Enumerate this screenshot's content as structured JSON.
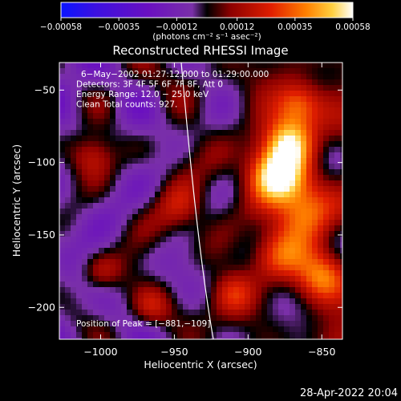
{
  "chart_data": {
    "type": "heatmap",
    "title": "Reconstructed RHESSI Image",
    "xlabel": "Heliocentric X (arcsec)",
    "ylabel": "Heliocentric Y (arcsec)",
    "xlim": [
      -1028,
      -836
    ],
    "ylim": [
      -222,
      -31
    ],
    "x_ticks": [
      {
        "value": -1000,
        "label": "−1000"
      },
      {
        "value": -950,
        "label": "−950"
      },
      {
        "value": -900,
        "label": "−900"
      },
      {
        "value": -850,
        "label": "−850"
      }
    ],
    "y_ticks": [
      {
        "value": -50,
        "label": "−50"
      },
      {
        "value": -100,
        "label": "−100"
      },
      {
        "value": -150,
        "label": "−150"
      },
      {
        "value": -200,
        "label": "−200"
      }
    ],
    "annotations": [
      "6−May−2002 01:27:12.000 to 01:29:00.000",
      "Detectors: 3F 4F 5F 6F 7F 8F, Att 0",
      "Energy Range: 12.0 − 25.0 keV",
      "Clean     Total counts: 927."
    ],
    "peak_label": "Position of Peak = [−881,−109]",
    "peak": [
      -881,
      -109
    ],
    "colorbar": {
      "range": [
        -0.00058,
        0.00058
      ],
      "ticks": [
        {
          "value": -0.00058,
          "label": "−0.00058"
        },
        {
          "value": -0.00035,
          "label": "−0.00035"
        },
        {
          "value": -0.00012,
          "label": "−0.00012"
        },
        {
          "value": 0.00012,
          "label": "0.00012"
        },
        {
          "value": 0.00035,
          "label": "0.00035"
        },
        {
          "value": 0.00058,
          "label": "0.00058"
        }
      ],
      "unit_label": "(photons cm⁻² s⁻¹ asec⁻²)"
    },
    "colors": {
      "background": "#000000",
      "colormap": [
        "#0a14ff",
        "#3c10e0",
        "#6a10c0",
        "#7a30a8",
        "#000000",
        "#8c0000",
        "#e01e00",
        "#ff8000",
        "#ffd040",
        "#ffffff"
      ]
    }
  },
  "footer": {
    "timestamp": "28-Apr-2022 20:04"
  }
}
